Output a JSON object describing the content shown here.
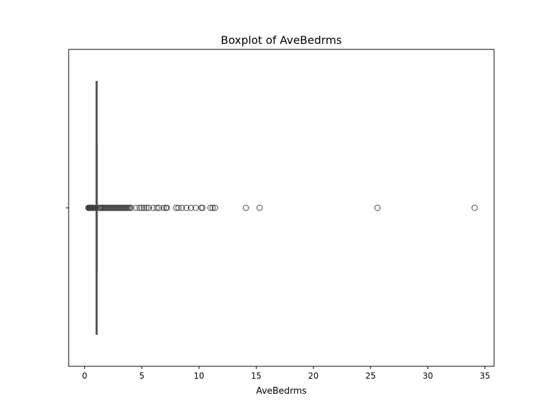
{
  "chart_data": {
    "type": "boxplot",
    "title": "Boxplot of AveBedrms",
    "xlabel": "AveBedrms",
    "ylabel": "",
    "orientation": "horizontal",
    "xlim": [
      -1.4,
      35.8
    ],
    "xticks": [
      0,
      5,
      10,
      15,
      20,
      25,
      30,
      35
    ],
    "grid": false,
    "box": {
      "whisker_low": 0.87,
      "q1": 1.01,
      "median": 1.05,
      "q3": 1.1,
      "whisker_high": 1.24
    },
    "outliers_low": [
      0.33,
      0.38,
      0.42,
      0.46,
      0.5,
      0.54,
      0.58,
      0.62,
      0.66,
      0.7,
      0.74,
      0.78,
      0.82,
      0.85
    ],
    "outliers_high": [
      1.28,
      1.35,
      1.42,
      1.5,
      1.58,
      1.66,
      1.75,
      1.85,
      1.95,
      2.05,
      2.15,
      2.25,
      2.35,
      2.45,
      2.55,
      2.65,
      2.75,
      2.85,
      2.95,
      3.05,
      3.15,
      3.25,
      3.35,
      3.45,
      3.55,
      3.65,
      3.75,
      3.85,
      3.95,
      4.05,
      4.5,
      4.8,
      5.0,
      5.2,
      5.4,
      5.6,
      6.0,
      6.3,
      6.5,
      6.9,
      7.1,
      7.2,
      8.0,
      8.2,
      8.5,
      8.9,
      9.3,
      9.7,
      10.2,
      10.3,
      11.0,
      11.2,
      11.4,
      14.1,
      15.3,
      25.6,
      34.1
    ],
    "colors": {
      "box_line": "#4d4d4d",
      "box_fill": "#1f77b4",
      "outlier_edge": "#3f3f3f",
      "axes": "#000000"
    }
  }
}
